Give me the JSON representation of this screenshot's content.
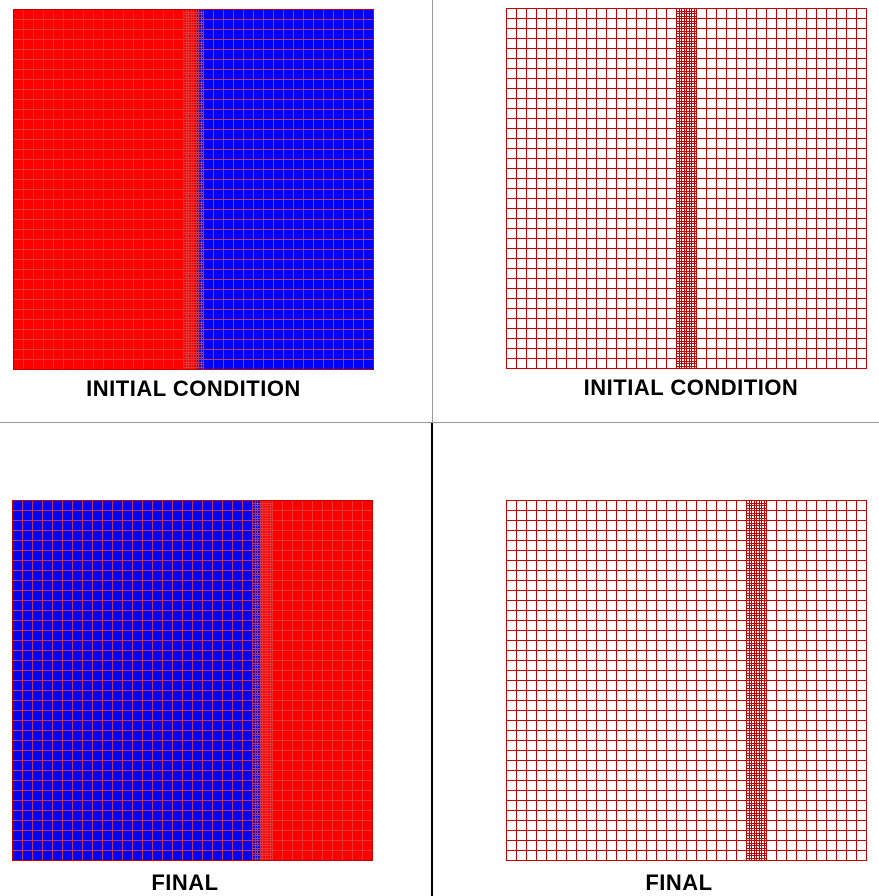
{
  "colors": {
    "fluid_a": "#ff0000",
    "fluid_b": "#0000ff",
    "mesh_line": "#c00000",
    "mesh_line_on_red": "#e04040",
    "divider": "#808080"
  },
  "panels": [
    {
      "id": "initial-volume-fraction",
      "caption": "INITIAL CONDITION",
      "kind": "fluid",
      "left_fluid": "red",
      "interface_position": 0.505,
      "refined_zone_width": 0.04
    },
    {
      "id": "initial-mesh",
      "caption": "INITIAL CONDITION",
      "kind": "mesh",
      "interface_position": 0.5,
      "refined_zone_width": 0.035
    },
    {
      "id": "final-volume-fraction",
      "caption": "FINAL",
      "kind": "fluid",
      "left_fluid": "blue",
      "interface_position": 0.69,
      "refined_zone_width": 0.04
    },
    {
      "id": "final-mesh",
      "caption": "FINAL",
      "kind": "mesh",
      "interface_position": 0.7,
      "refined_zone_width": 0.035
    }
  ],
  "mesh": {
    "coarse_cells": 36,
    "fine_subdivisions": 4
  }
}
